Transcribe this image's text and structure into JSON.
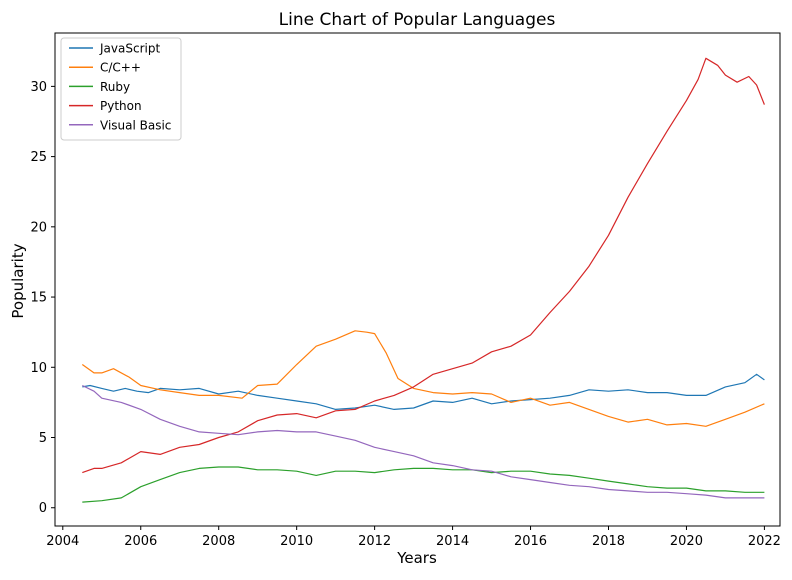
{
  "chart_data": {
    "type": "line",
    "title": "Line Chart of Popular Languages",
    "xlabel": "Years",
    "ylabel": "Popularity",
    "xlim": [
      2003.8,
      2022.4
    ],
    "ylim": [
      -1.3,
      33.8
    ],
    "x_ticks": [
      2004,
      2006,
      2008,
      2010,
      2012,
      2014,
      2016,
      2018,
      2020,
      2022
    ],
    "x_tick_labels": [
      "2004",
      "2006",
      "2008",
      "2010",
      "2012",
      "2014",
      "2016",
      "2018",
      "2020",
      "2022"
    ],
    "y_ticks": [
      0,
      5,
      10,
      15,
      20,
      25,
      30
    ],
    "y_tick_labels": [
      "0",
      "5",
      "10",
      "15",
      "20",
      "25",
      "30"
    ],
    "grid": false,
    "legend_position": "top-left",
    "series": [
      {
        "name": "JavaScript",
        "color": "#1f77b4",
        "x": [
          2004.5,
          2004.7,
          2005.0,
          2005.3,
          2005.6,
          2005.9,
          2006.2,
          2006.5,
          2007.0,
          2007.5,
          2008.0,
          2008.5,
          2009.0,
          2009.5,
          2010.0,
          2010.5,
          2011.0,
          2011.5,
          2012.0,
          2012.5,
          2013.0,
          2013.5,
          2014.0,
          2014.5,
          2015.0,
          2015.5,
          2016.0,
          2016.5,
          2017.0,
          2017.5,
          2018.0,
          2018.5,
          2019.0,
          2019.5,
          2020.0,
          2020.5,
          2021.0,
          2021.5,
          2021.8,
          2022.0
        ],
        "y": [
          8.6,
          8.7,
          8.5,
          8.3,
          8.5,
          8.3,
          8.2,
          8.5,
          8.4,
          8.5,
          8.1,
          8.3,
          8.0,
          7.8,
          7.6,
          7.4,
          7.0,
          7.1,
          7.3,
          7.0,
          7.1,
          7.6,
          7.5,
          7.8,
          7.4,
          7.6,
          7.7,
          7.8,
          8.0,
          8.4,
          8.3,
          8.4,
          8.2,
          8.2,
          8.0,
          8.0,
          8.6,
          8.9,
          9.5,
          9.1
        ]
      },
      {
        "name": "C/C++",
        "color": "#ff7f0e",
        "x": [
          2004.5,
          2004.8,
          2005.0,
          2005.3,
          2005.7,
          2006.0,
          2006.5,
          2007.0,
          2007.5,
          2008.0,
          2008.6,
          2009.0,
          2009.5,
          2010.0,
          2010.5,
          2011.0,
          2011.5,
          2011.8,
          2012.0,
          2012.3,
          2012.6,
          2013.0,
          2013.5,
          2014.0,
          2014.5,
          2015.0,
          2015.5,
          2016.0,
          2016.5,
          2017.0,
          2017.5,
          2018.0,
          2018.5,
          2019.0,
          2019.5,
          2020.0,
          2020.5,
          2021.0,
          2021.5,
          2022.0
        ],
        "y": [
          10.2,
          9.6,
          9.6,
          9.9,
          9.3,
          8.7,
          8.4,
          8.2,
          8.0,
          8.0,
          7.8,
          8.7,
          8.8,
          10.2,
          11.5,
          12.0,
          12.6,
          12.5,
          12.4,
          11.0,
          9.2,
          8.5,
          8.2,
          8.1,
          8.2,
          8.1,
          7.5,
          7.8,
          7.3,
          7.5,
          7.0,
          6.5,
          6.1,
          6.3,
          5.9,
          6.0,
          5.8,
          6.3,
          6.8,
          7.4
        ]
      },
      {
        "name": "Ruby",
        "color": "#2ca02c",
        "x": [
          2004.5,
          2005.0,
          2005.5,
          2006.0,
          2006.5,
          2007.0,
          2007.5,
          2008.0,
          2008.5,
          2009.0,
          2009.5,
          2010.0,
          2010.5,
          2011.0,
          2011.5,
          2012.0,
          2012.5,
          2013.0,
          2013.5,
          2014.0,
          2014.5,
          2015.0,
          2015.5,
          2016.0,
          2016.5,
          2017.0,
          2017.5,
          2018.0,
          2018.5,
          2019.0,
          2019.5,
          2020.0,
          2020.5,
          2021.0,
          2021.5,
          2022.0
        ],
        "y": [
          0.4,
          0.5,
          0.7,
          1.5,
          2.0,
          2.5,
          2.8,
          2.9,
          2.9,
          2.7,
          2.7,
          2.6,
          2.3,
          2.6,
          2.6,
          2.5,
          2.7,
          2.8,
          2.8,
          2.7,
          2.7,
          2.5,
          2.6,
          2.6,
          2.4,
          2.3,
          2.1,
          1.9,
          1.7,
          1.5,
          1.4,
          1.4,
          1.2,
          1.2,
          1.1,
          1.1
        ]
      },
      {
        "name": "Python",
        "color": "#d62728",
        "x": [
          2004.5,
          2004.8,
          2005.0,
          2005.5,
          2006.0,
          2006.5,
          2007.0,
          2007.5,
          2008.0,
          2008.5,
          2009.0,
          2009.5,
          2010.0,
          2010.5,
          2011.0,
          2011.5,
          2012.0,
          2012.5,
          2013.0,
          2013.5,
          2014.0,
          2014.5,
          2015.0,
          2015.5,
          2016.0,
          2016.5,
          2017.0,
          2017.5,
          2018.0,
          2018.5,
          2019.0,
          2019.5,
          2020.0,
          2020.3,
          2020.5,
          2020.8,
          2021.0,
          2021.3,
          2021.6,
          2021.8,
          2022.0
        ],
        "y": [
          2.5,
          2.8,
          2.8,
          3.2,
          4.0,
          3.8,
          4.3,
          4.5,
          5.0,
          5.4,
          6.2,
          6.6,
          6.7,
          6.4,
          6.9,
          7.0,
          7.6,
          8.0,
          8.6,
          9.5,
          9.9,
          10.3,
          11.1,
          11.5,
          12.3,
          13.9,
          15.4,
          17.2,
          19.4,
          22.1,
          24.5,
          26.8,
          29.0,
          30.5,
          32.0,
          31.5,
          30.8,
          30.3,
          30.7,
          30.1,
          28.7
        ]
      },
      {
        "name": "Visual Basic",
        "color": "#9467bd",
        "x": [
          2004.5,
          2004.8,
          2005.0,
          2005.5,
          2006.0,
          2006.5,
          2007.0,
          2007.5,
          2008.0,
          2008.5,
          2009.0,
          2009.5,
          2010.0,
          2010.5,
          2011.0,
          2011.5,
          2012.0,
          2012.5,
          2013.0,
          2013.5,
          2014.0,
          2014.5,
          2015.0,
          2015.5,
          2016.0,
          2016.5,
          2017.0,
          2017.5,
          2018.0,
          2018.5,
          2019.0,
          2019.5,
          2020.0,
          2020.5,
          2021.0,
          2021.5,
          2022.0
        ],
        "y": [
          8.7,
          8.3,
          7.8,
          7.5,
          7.0,
          6.3,
          5.8,
          5.4,
          5.3,
          5.2,
          5.4,
          5.5,
          5.4,
          5.4,
          5.1,
          4.8,
          4.3,
          4.0,
          3.7,
          3.2,
          3.0,
          2.7,
          2.6,
          2.2,
          2.0,
          1.8,
          1.6,
          1.5,
          1.3,
          1.2,
          1.1,
          1.1,
          1.0,
          0.9,
          0.7,
          0.7,
          0.7
        ]
      }
    ]
  }
}
